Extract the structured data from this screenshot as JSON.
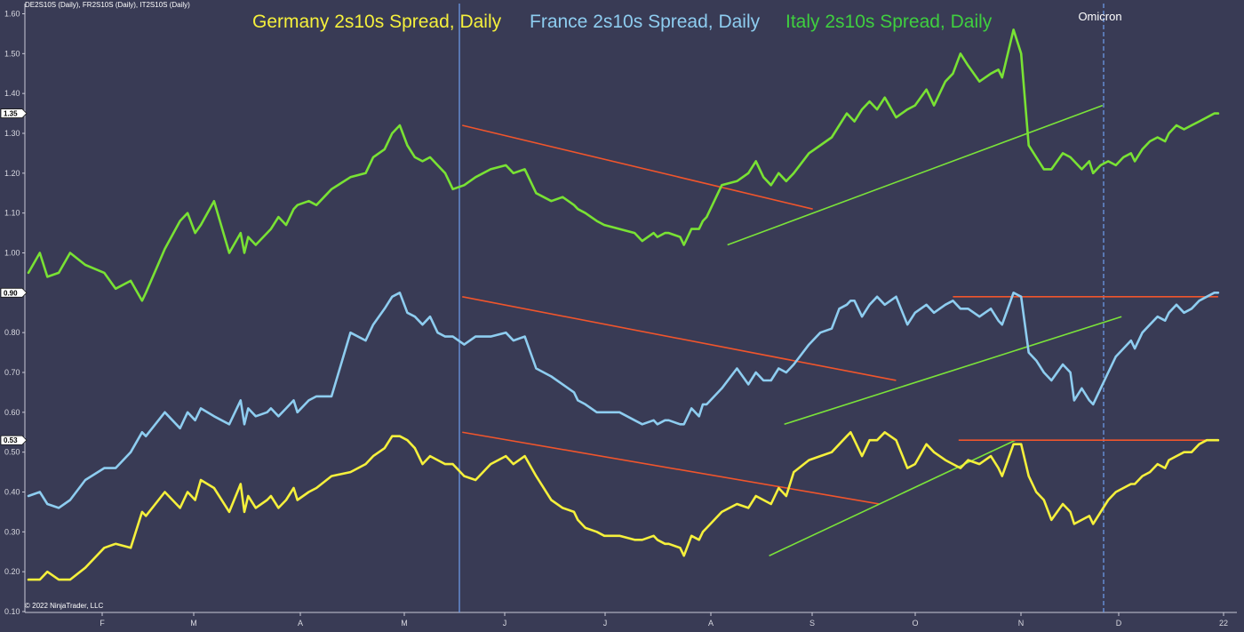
{
  "header": {
    "instruments": "DE2S10S (Daily), FR2S10S (Daily), IT2S10S (Daily)",
    "copyright": "© 2022 NinjaTrader, LLC"
  },
  "colors": {
    "background": "#393b55",
    "germany": "#f5f03c",
    "france": "#8ecdf0",
    "italy": "#79e234",
    "italy_title": "#3fcf3f",
    "trend_down": "#f0552c",
    "trend_up": "#7be33a",
    "marker_line": "#6f9ff0"
  },
  "chart_data": {
    "type": "line",
    "titles": [
      "Germany 2s10s Spread, Daily",
      "France 2s10s Spread, Daily",
      "Italy 2s10s Spread, Daily"
    ],
    "ylim": [
      0.1,
      1.6
    ],
    "yticks": [
      "0.10",
      "0.20",
      "0.30",
      "0.40",
      "0.50",
      "0.60",
      "0.70",
      "0.80",
      "0.90",
      "1.00",
      "1.10",
      "1.20",
      "1.30",
      "1.40",
      "1.50",
      "1.60"
    ],
    "xticks": [
      "F",
      "M",
      "A",
      "M",
      "J",
      "J",
      "A",
      "S",
      "O",
      "N",
      "D",
      "22"
    ],
    "last_value_badges": [
      "1.35",
      "0.90",
      "0.53"
    ],
    "annotation": "Omicron",
    "series": [
      {
        "name": "Germany 2s10s Spread, Daily",
        "key": "germany",
        "x": [
          0,
          6,
          10,
          16,
          22,
          30,
          40,
          46,
          54,
          60,
          62,
          72,
          80,
          84,
          88,
          91,
          98,
          106,
          112,
          114,
          116,
          120,
          126,
          128,
          132,
          136,
          140,
          142,
          148,
          152,
          160,
          170,
          178,
          182,
          188,
          192,
          196,
          200,
          204,
          208,
          212,
          216,
          220,
          224,
          230,
          236,
          244,
          252,
          256,
          262,
          268,
          276,
          282,
          288,
          290,
          294,
          300,
          304,
          312,
          320,
          324,
          330,
          332,
          336,
          338,
          344,
          346,
          350,
          354,
          356,
          358,
          362,
          366,
          374,
          380,
          384,
          388,
          392,
          396,
          400,
          404,
          412,
          418,
          424,
          428,
          432,
          434,
          436,
          440,
          444,
          448,
          452,
          458,
          464,
          468,
          474,
          478,
          484,
          488,
          492,
          496,
          502,
          508,
          512,
          514,
          520,
          524,
          528,
          532,
          536,
          540,
          546,
          550,
          552,
          556,
          560,
          562,
          566,
          570,
          574,
          578,
          582,
          584,
          588,
          592,
          596,
          600,
          602,
          606,
          610,
          614,
          618,
          622,
          626,
          628
        ],
        "values": [
          0.18,
          0.18,
          0.2,
          0.18,
          0.18,
          0.21,
          0.26,
          0.27,
          0.26,
          0.35,
          0.34,
          0.4,
          0.36,
          0.4,
          0.38,
          0.43,
          0.41,
          0.35,
          0.42,
          0.35,
          0.39,
          0.36,
          0.38,
          0.39,
          0.36,
          0.38,
          0.41,
          0.38,
          0.4,
          0.41,
          0.44,
          0.45,
          0.47,
          0.49,
          0.51,
          0.54,
          0.54,
          0.53,
          0.51,
          0.47,
          0.49,
          0.48,
          0.47,
          0.47,
          0.44,
          0.43,
          0.47,
          0.49,
          0.47,
          0.49,
          0.44,
          0.38,
          0.36,
          0.35,
          0.33,
          0.31,
          0.3,
          0.29,
          0.29,
          0.28,
          0.28,
          0.29,
          0.28,
          0.27,
          0.27,
          0.26,
          0.24,
          0.29,
          0.28,
          0.3,
          0.31,
          0.33,
          0.35,
          0.37,
          0.36,
          0.39,
          0.38,
          0.37,
          0.41,
          0.39,
          0.45,
          0.48,
          0.49,
          0.5,
          0.52,
          0.54,
          0.55,
          0.53,
          0.49,
          0.53,
          0.53,
          0.55,
          0.53,
          0.46,
          0.47,
          0.52,
          0.5,
          0.48,
          0.47,
          0.46,
          0.48,
          0.47,
          0.49,
          0.46,
          0.44,
          0.52,
          0.52,
          0.44,
          0.4,
          0.38,
          0.33,
          0.37,
          0.35,
          0.32,
          0.33,
          0.34,
          0.32,
          0.35,
          0.38,
          0.4,
          0.41,
          0.42,
          0.42,
          0.44,
          0.45,
          0.47,
          0.46,
          0.48,
          0.49,
          0.5,
          0.5,
          0.52,
          0.53,
          0.53,
          0.53
        ]
      },
      {
        "name": "France 2s10s Spread, Daily",
        "key": "france",
        "x": [
          0,
          6,
          10,
          16,
          22,
          30,
          40,
          46,
          54,
          60,
          62,
          72,
          80,
          84,
          88,
          91,
          98,
          106,
          112,
          114,
          116,
          120,
          126,
          128,
          132,
          136,
          140,
          142,
          148,
          152,
          160,
          170,
          178,
          182,
          188,
          192,
          196,
          200,
          204,
          208,
          212,
          216,
          220,
          224,
          230,
          236,
          244,
          252,
          256,
          262,
          268,
          276,
          282,
          288,
          290,
          294,
          300,
          304,
          312,
          320,
          324,
          330,
          332,
          336,
          338,
          344,
          346,
          350,
          354,
          356,
          358,
          362,
          366,
          374,
          380,
          384,
          388,
          392,
          396,
          400,
          404,
          412,
          418,
          424,
          428,
          432,
          434,
          436,
          440,
          444,
          448,
          452,
          458,
          464,
          468,
          474,
          478,
          484,
          488,
          492,
          496,
          502,
          508,
          512,
          514,
          520,
          524,
          528,
          532,
          536,
          540,
          546,
          550,
          552,
          556,
          560,
          562,
          566,
          570,
          574,
          578,
          582,
          584,
          588,
          592,
          596,
          600,
          602,
          606,
          610,
          614,
          618,
          622,
          626,
          628
        ],
        "values": [
          0.39,
          0.4,
          0.37,
          0.36,
          0.38,
          0.43,
          0.46,
          0.46,
          0.5,
          0.55,
          0.54,
          0.6,
          0.56,
          0.6,
          0.58,
          0.61,
          0.59,
          0.57,
          0.63,
          0.57,
          0.61,
          0.59,
          0.6,
          0.61,
          0.59,
          0.61,
          0.63,
          0.6,
          0.63,
          0.64,
          0.64,
          0.8,
          0.78,
          0.82,
          0.86,
          0.89,
          0.9,
          0.85,
          0.84,
          0.82,
          0.84,
          0.8,
          0.79,
          0.79,
          0.77,
          0.79,
          0.79,
          0.8,
          0.78,
          0.79,
          0.71,
          0.69,
          0.67,
          0.65,
          0.63,
          0.62,
          0.6,
          0.6,
          0.6,
          0.58,
          0.57,
          0.58,
          0.57,
          0.58,
          0.58,
          0.57,
          0.57,
          0.61,
          0.59,
          0.62,
          0.62,
          0.64,
          0.66,
          0.71,
          0.67,
          0.7,
          0.68,
          0.68,
          0.71,
          0.7,
          0.72,
          0.77,
          0.8,
          0.81,
          0.86,
          0.87,
          0.88,
          0.88,
          0.84,
          0.87,
          0.89,
          0.87,
          0.89,
          0.82,
          0.85,
          0.87,
          0.85,
          0.87,
          0.88,
          0.86,
          0.86,
          0.84,
          0.86,
          0.83,
          0.82,
          0.9,
          0.89,
          0.75,
          0.73,
          0.7,
          0.68,
          0.72,
          0.7,
          0.63,
          0.66,
          0.63,
          0.62,
          0.66,
          0.7,
          0.74,
          0.76,
          0.78,
          0.76,
          0.8,
          0.82,
          0.84,
          0.83,
          0.85,
          0.87,
          0.85,
          0.86,
          0.88,
          0.89,
          0.9,
          0.9
        ]
      },
      {
        "name": "Italy 2s10s Spread, Daily",
        "key": "italy",
        "x": [
          0,
          6,
          10,
          16,
          22,
          30,
          40,
          46,
          54,
          60,
          62,
          72,
          80,
          84,
          88,
          91,
          98,
          106,
          112,
          114,
          116,
          120,
          126,
          128,
          132,
          136,
          140,
          142,
          148,
          152,
          160,
          170,
          178,
          182,
          188,
          192,
          196,
          200,
          204,
          208,
          212,
          216,
          220,
          224,
          230,
          236,
          244,
          252,
          256,
          262,
          268,
          276,
          282,
          288,
          290,
          294,
          300,
          304,
          312,
          320,
          324,
          330,
          332,
          336,
          338,
          344,
          346,
          350,
          354,
          356,
          358,
          362,
          366,
          374,
          380,
          384,
          388,
          392,
          396,
          400,
          404,
          412,
          418,
          424,
          428,
          432,
          434,
          436,
          440,
          444,
          448,
          452,
          458,
          464,
          468,
          474,
          478,
          484,
          488,
          492,
          496,
          502,
          508,
          512,
          514,
          520,
          524,
          528,
          532,
          536,
          540,
          546,
          550,
          552,
          556,
          560,
          562,
          566,
          570,
          574,
          578,
          582,
          584,
          588,
          592,
          596,
          600,
          602,
          606,
          610,
          614,
          618,
          622,
          626,
          628
        ],
        "values": [
          0.95,
          1.0,
          0.94,
          0.95,
          1.0,
          0.97,
          0.95,
          0.91,
          0.93,
          0.88,
          0.9,
          1.01,
          1.08,
          1.1,
          1.05,
          1.07,
          1.13,
          1.0,
          1.05,
          1.0,
          1.04,
          1.02,
          1.05,
          1.06,
          1.09,
          1.07,
          1.11,
          1.12,
          1.13,
          1.12,
          1.16,
          1.19,
          1.2,
          1.24,
          1.26,
          1.3,
          1.32,
          1.27,
          1.24,
          1.23,
          1.24,
          1.22,
          1.2,
          1.16,
          1.17,
          1.19,
          1.21,
          1.22,
          1.2,
          1.21,
          1.15,
          1.13,
          1.14,
          1.12,
          1.11,
          1.1,
          1.08,
          1.07,
          1.06,
          1.05,
          1.03,
          1.05,
          1.04,
          1.05,
          1.05,
          1.04,
          1.02,
          1.06,
          1.06,
          1.08,
          1.09,
          1.13,
          1.17,
          1.18,
          1.2,
          1.23,
          1.19,
          1.17,
          1.2,
          1.18,
          1.2,
          1.25,
          1.27,
          1.29,
          1.32,
          1.35,
          1.34,
          1.33,
          1.36,
          1.38,
          1.36,
          1.39,
          1.34,
          1.36,
          1.37,
          1.41,
          1.37,
          1.43,
          1.45,
          1.5,
          1.47,
          1.43,
          1.45,
          1.46,
          1.44,
          1.56,
          1.5,
          1.27,
          1.24,
          1.21,
          1.21,
          1.25,
          1.24,
          1.23,
          1.21,
          1.23,
          1.2,
          1.22,
          1.23,
          1.22,
          1.24,
          1.25,
          1.23,
          1.26,
          1.28,
          1.29,
          1.28,
          1.3,
          1.32,
          1.31,
          1.32,
          1.33,
          1.34,
          1.35,
          1.35
        ]
      }
    ]
  }
}
